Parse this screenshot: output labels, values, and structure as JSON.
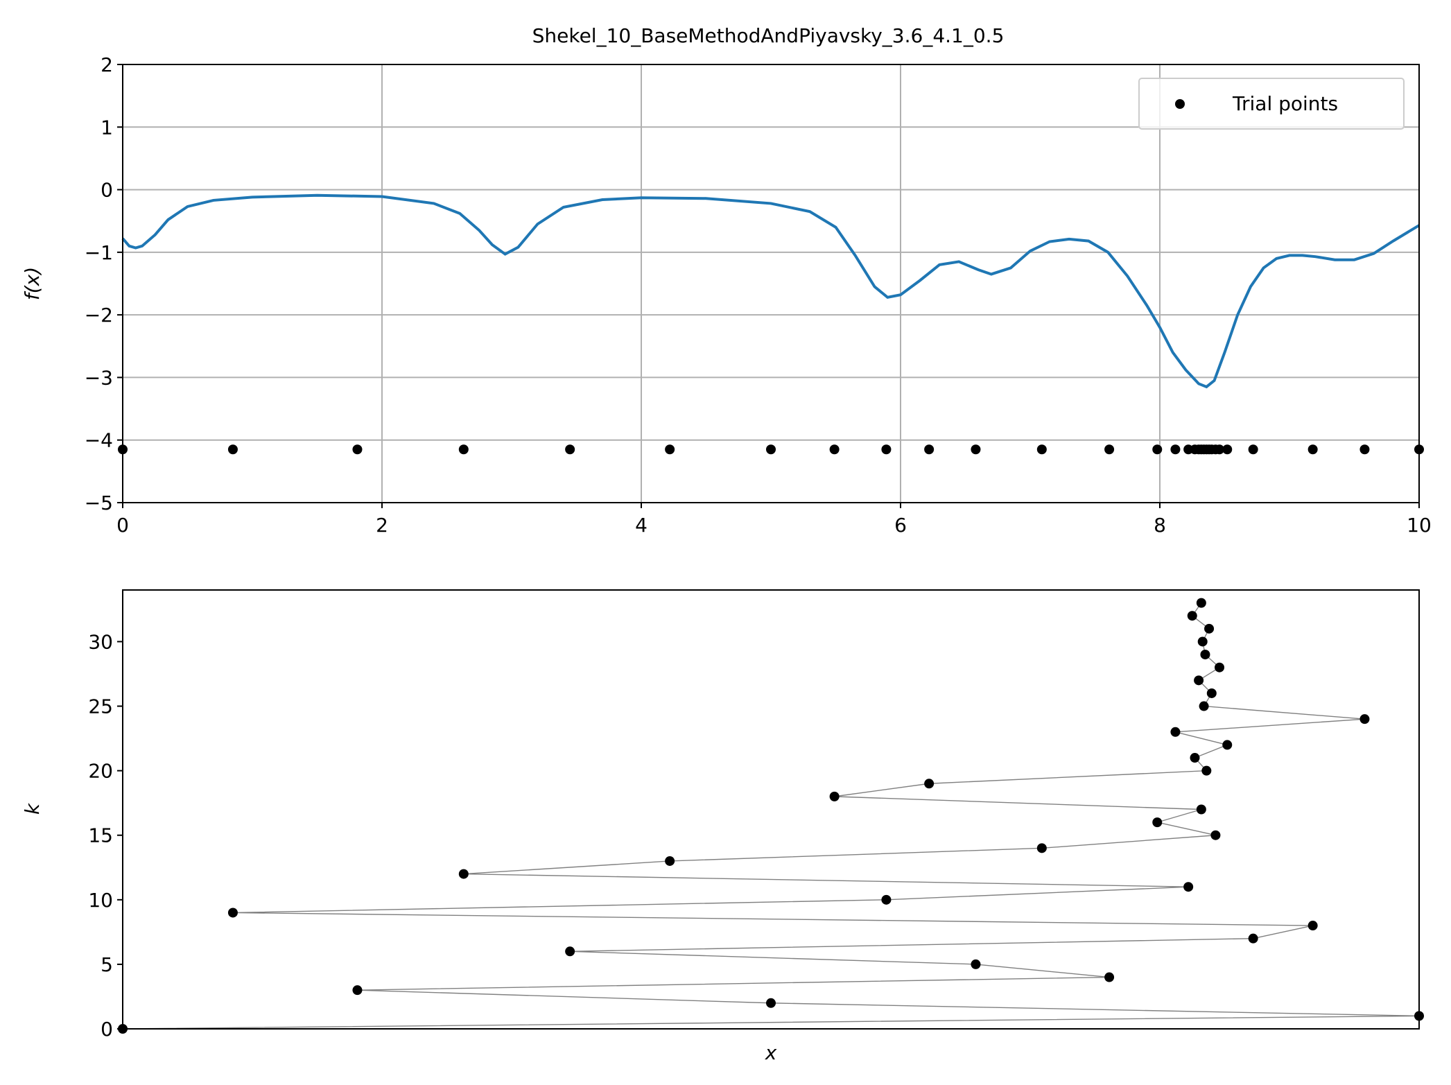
{
  "colors": {
    "curve": "#1f77b4",
    "points": "#000000",
    "path_line": "#808080",
    "grid": "#b0b0b0",
    "axes": "#000000",
    "background": "#ffffff"
  },
  "chart_data": [
    {
      "type": "line",
      "title": "Shekel_10_BaseMethodAndPiyavsky_3.6_4.1_0.5",
      "xlabel": "",
      "ylabel": "f(x)",
      "xlim": [
        0,
        10
      ],
      "ylim": [
        -5,
        2
      ],
      "grid": true,
      "legend": {
        "placement": "top-right",
        "entries": [
          "Trial points"
        ]
      },
      "x_ticks": [
        0,
        2,
        4,
        6,
        8,
        10
      ],
      "x_tick_labels": [
        "0",
        "2",
        "4",
        "6",
        "8",
        "10"
      ],
      "y_ticks": [
        2,
        1,
        0,
        -1,
        -2,
        -3,
        -4,
        -5
      ],
      "y_tick_labels": [
        "2",
        "1",
        "0",
        "−1",
        "−2",
        "−3",
        "−4",
        "−5"
      ],
      "series": [
        {
          "kind": "line",
          "x": [
            0,
            0.05,
            0.1,
            0.15,
            0.25,
            0.35,
            0.5,
            0.7,
            1.0,
            1.5,
            2.0,
            2.4,
            2.6,
            2.75,
            2.85,
            2.95,
            3.05,
            3.2,
            3.4,
            3.7,
            4.0,
            4.5,
            5.0,
            5.3,
            5.5,
            5.65,
            5.8,
            5.9,
            6.0,
            6.15,
            6.3,
            6.45,
            6.6,
            6.7,
            6.85,
            7.0,
            7.15,
            7.3,
            7.45,
            7.6,
            7.75,
            7.9,
            8.0,
            8.1,
            8.2,
            8.3,
            8.36,
            8.42,
            8.5,
            8.6,
            8.7,
            8.8,
            8.9,
            9.0,
            9.1,
            9.2,
            9.35,
            9.5,
            9.65,
            9.8,
            10.0
          ],
          "y": [
            -0.78,
            -0.9,
            -0.93,
            -0.9,
            -0.72,
            -0.48,
            -0.27,
            -0.17,
            -0.12,
            -0.09,
            -0.11,
            -0.22,
            -0.38,
            -0.65,
            -0.88,
            -1.03,
            -0.92,
            -0.55,
            -0.28,
            -0.16,
            -0.13,
            -0.14,
            -0.22,
            -0.35,
            -0.6,
            -1.05,
            -1.55,
            -1.72,
            -1.68,
            -1.45,
            -1.2,
            -1.15,
            -1.28,
            -1.35,
            -1.25,
            -0.98,
            -0.83,
            -0.79,
            -0.82,
            -1.0,
            -1.38,
            -1.85,
            -2.2,
            -2.6,
            -2.88,
            -3.1,
            -3.15,
            -3.05,
            -2.6,
            -2.0,
            -1.55,
            -1.25,
            -1.1,
            -1.05,
            -1.05,
            -1.07,
            -1.12,
            -1.12,
            -1.02,
            -0.82,
            -0.57
          ]
        },
        {
          "kind": "scatter",
          "name": "Trial points",
          "x": [
            0,
            0.85,
            1.81,
            2.63,
            3.45,
            4.22,
            5.0,
            5.49,
            5.89,
            6.22,
            6.58,
            7.09,
            7.61,
            7.98,
            8.12,
            8.22,
            8.27,
            8.3,
            8.32,
            8.34,
            8.36,
            8.38,
            8.4,
            8.43,
            8.46,
            8.52,
            8.72,
            9.18,
            9.58,
            10.0
          ],
          "y": [
            -4.15,
            -4.15,
            -4.15,
            -4.15,
            -4.15,
            -4.15,
            -4.15,
            -4.15,
            -4.15,
            -4.15,
            -4.15,
            -4.15,
            -4.15,
            -4.15,
            -4.15,
            -4.15,
            -4.15,
            -4.15,
            -4.15,
            -4.15,
            -4.15,
            -4.15,
            -4.15,
            -4.15,
            -4.15,
            -4.15,
            -4.15,
            -4.15,
            -4.15,
            -4.15
          ]
        }
      ]
    },
    {
      "type": "line",
      "title": "",
      "xlabel": "x",
      "ylabel": "k",
      "xlim": [
        0,
        10
      ],
      "ylim": [
        0,
        34
      ],
      "grid": false,
      "y_ticks": [
        0,
        5,
        10,
        15,
        20,
        25,
        30
      ],
      "y_tick_labels": [
        "0",
        "5",
        "10",
        "15",
        "20",
        "25",
        "30"
      ],
      "series": [
        {
          "kind": "line+markers",
          "x": [
            0,
            10.0,
            5.0,
            1.81,
            7.61,
            6.58,
            3.45,
            8.72,
            9.18,
            0.85,
            5.89,
            8.22,
            2.63,
            4.22,
            7.09,
            8.43,
            7.98,
            8.32,
            5.49,
            6.22,
            8.36,
            8.27,
            8.52,
            8.12,
            9.58,
            8.34,
            8.4,
            8.3,
            8.46,
            8.35,
            8.33,
            8.38,
            8.25,
            8.32
          ],
          "y": [
            0,
            1,
            2,
            3,
            4,
            5,
            6,
            7,
            8,
            9,
            10,
            11,
            12,
            13,
            14,
            15,
            16,
            17,
            18,
            19,
            20,
            21,
            22,
            23,
            24,
            25,
            26,
            27,
            28,
            29,
            30,
            31,
            32,
            33
          ]
        }
      ]
    }
  ]
}
